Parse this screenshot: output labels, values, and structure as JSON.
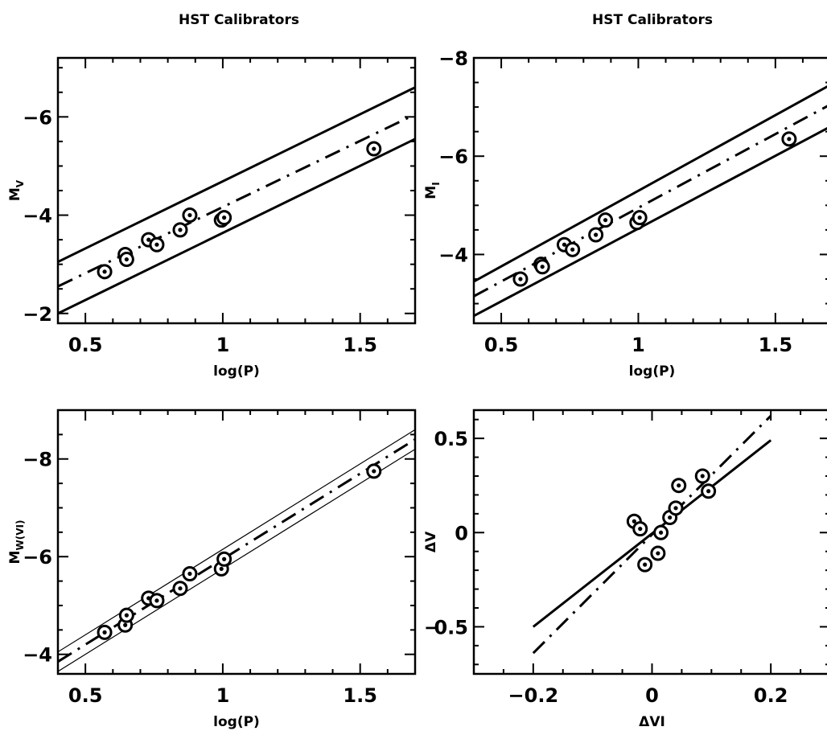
{
  "chart_data": [
    {
      "type": "scatter",
      "title": "HST Calibrators",
      "xlabel": "log(P)",
      "ylabel": {
        "main": "M",
        "sub": "V"
      },
      "xlim": [
        0.4,
        1.7
      ],
      "ylim": [
        -1.8,
        -7.2
      ],
      "xticks": [
        0.5,
        1,
        1.5
      ],
      "xtick_labels": [
        "0.5",
        "1",
        "1.5"
      ],
      "yticks": [
        -2,
        -4,
        -6
      ],
      "ytick_labels": [
        "−2",
        "−4",
        "−6"
      ],
      "x_minor_step": 0.1,
      "y_minor_step": 0.5,
      "grid": false,
      "series": [
        {
          "type": "scatter",
          "marker": "circle-dot",
          "x": [
            0.57,
            0.645,
            0.65,
            0.73,
            0.76,
            0.845,
            0.88,
            0.995,
            1.005,
            1.55
          ],
          "y": [
            -2.85,
            -3.2,
            -3.1,
            -3.5,
            -3.4,
            -3.7,
            -4.0,
            -3.9,
            -3.95,
            -5.35
          ]
        },
        {
          "type": "line",
          "style": "dashdot",
          "x": [
            0.4,
            1.7
          ],
          "y": [
            -2.55,
            -6.05
          ]
        },
        {
          "type": "line",
          "style": "solid",
          "x": [
            0.4,
            1.7
          ],
          "y": [
            -3.05,
            -6.6
          ]
        },
        {
          "type": "line",
          "style": "solid",
          "x": [
            0.4,
            1.7
          ],
          "y": [
            -2.0,
            -5.55
          ]
        }
      ]
    },
    {
      "type": "scatter",
      "title": "HST Calibrators",
      "xlabel": "log(P)",
      "ylabel": {
        "main": "M",
        "sub": "I"
      },
      "xlim": [
        0.4,
        1.7
      ],
      "ylim": [
        -2.6,
        -8.0
      ],
      "xticks": [
        0.5,
        1,
        1.5
      ],
      "xtick_labels": [
        "0.5",
        "1",
        "1.5"
      ],
      "yticks": [
        -4,
        -6,
        -8
      ],
      "ytick_labels": [
        "−4",
        "−6",
        "−8"
      ],
      "x_minor_step": 0.1,
      "y_minor_step": 0.5,
      "grid": false,
      "series": [
        {
          "type": "scatter",
          "marker": "circle-dot",
          "x": [
            0.57,
            0.645,
            0.65,
            0.73,
            0.76,
            0.845,
            0.88,
            0.995,
            1.005,
            1.55
          ],
          "y": [
            -3.5,
            -3.8,
            -3.75,
            -4.2,
            -4.1,
            -4.4,
            -4.7,
            -4.65,
            -4.75,
            -6.35
          ]
        },
        {
          "type": "line",
          "style": "dashdot",
          "x": [
            0.4,
            1.7
          ],
          "y": [
            -3.15,
            -7.05
          ]
        },
        {
          "type": "line",
          "style": "solid",
          "x": [
            0.4,
            1.7
          ],
          "y": [
            -3.45,
            -7.45
          ]
        },
        {
          "type": "line",
          "style": "solid",
          "x": [
            0.4,
            1.7
          ],
          "y": [
            -2.75,
            -6.6
          ]
        }
      ]
    },
    {
      "type": "scatter",
      "title": "",
      "xlabel": "log(P)",
      "ylabel": {
        "main": "M",
        "sub": "W(VI)"
      },
      "xlim": [
        0.4,
        1.7
      ],
      "ylim": [
        -3.6,
        -9.0
      ],
      "xticks": [
        0.5,
        1,
        1.5
      ],
      "xtick_labels": [
        "0.5",
        "1",
        "1.5"
      ],
      "yticks": [
        -4,
        -6,
        -8
      ],
      "ytick_labels": [
        "−4",
        "−6",
        "−8"
      ],
      "x_minor_step": 0.1,
      "y_minor_step": 0.5,
      "grid": false,
      "series": [
        {
          "type": "scatter",
          "marker": "circle-dot",
          "x": [
            0.57,
            0.645,
            0.65,
            0.73,
            0.76,
            0.845,
            0.88,
            0.995,
            1.005,
            1.55
          ],
          "y": [
            -4.45,
            -4.6,
            -4.8,
            -5.15,
            -5.1,
            -5.35,
            -5.65,
            -5.75,
            -5.95,
            -7.75
          ]
        },
        {
          "type": "line",
          "style": "dashdot",
          "x": [
            0.4,
            1.7
          ],
          "y": [
            -3.85,
            -8.4
          ]
        },
        {
          "type": "line",
          "style": "thin",
          "x": [
            0.4,
            1.7
          ],
          "y": [
            -4.05,
            -8.6
          ]
        },
        {
          "type": "line",
          "style": "thin",
          "x": [
            0.4,
            1.7
          ],
          "y": [
            -3.65,
            -8.2
          ]
        }
      ]
    },
    {
      "type": "scatter",
      "title": "",
      "xlabel": "ΔVI",
      "ylabel": {
        "main": "ΔV",
        "sub": ""
      },
      "xlim": [
        -0.3,
        0.3
      ],
      "ylim": [
        -0.75,
        0.65
      ],
      "xticks": [
        -0.2,
        0,
        0.2
      ],
      "xtick_labels": [
        "−0.2",
        "0",
        "0.2"
      ],
      "yticks": [
        -0.5,
        0,
        0.5
      ],
      "ytick_labels": [
        "0.5",
        "0",
        "0.5"
      ],
      "ytick_prefix": {
        "value": -0.5,
        "text": "−"
      },
      "x_minor_step": 0.05,
      "y_minor_step": 0.1,
      "grid": false,
      "series": [
        {
          "type": "scatter",
          "marker": "circle-dot",
          "x": [
            -0.03,
            -0.02,
            -0.012,
            0.01,
            0.015,
            0.03,
            0.04,
            0.045,
            0.085,
            0.095
          ],
          "y": [
            0.06,
            0.02,
            -0.17,
            -0.11,
            0.0,
            0.08,
            0.13,
            0.25,
            0.3,
            0.22
          ]
        },
        {
          "type": "line",
          "style": "solid",
          "x": [
            -0.2,
            0.2
          ],
          "y": [
            -0.5,
            0.49
          ]
        },
        {
          "type": "line",
          "style": "dashdot",
          "x": [
            -0.2,
            0.2
          ],
          "y": [
            -0.64,
            0.62
          ]
        }
      ]
    }
  ]
}
